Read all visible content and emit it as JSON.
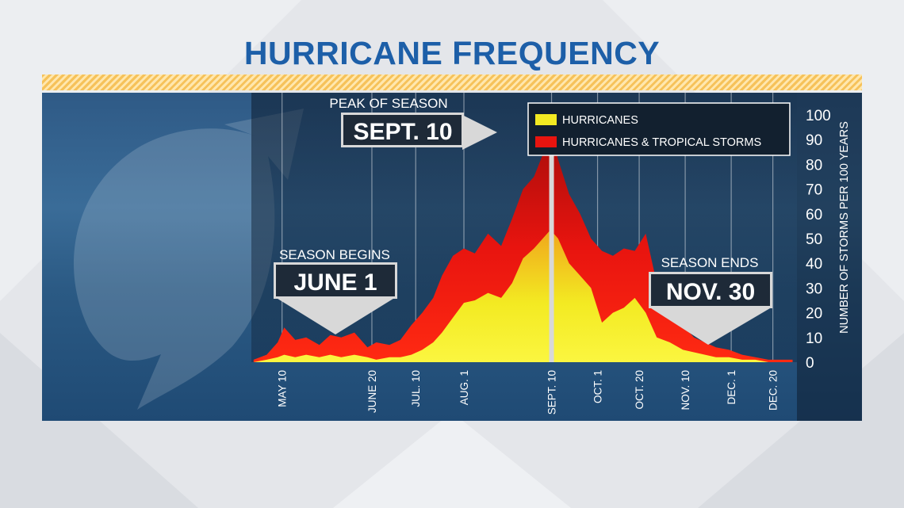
{
  "title": "HURRICANE FREQUENCY",
  "colors": {
    "title": "#1d5fa8",
    "hurricanes": "#f3ea22",
    "hurricanes_tropical": "#e8140f",
    "panel": "#2c5278",
    "stripe": "#f6c25a"
  },
  "annotations": {
    "peak": {
      "label": "PEAK OF SEASON",
      "date": "SEPT. 10"
    },
    "begin": {
      "label": "SEASON BEGINS",
      "date": "JUNE 1"
    },
    "end": {
      "label": "SEASON ENDS",
      "date": "NOV. 30"
    }
  },
  "chart_data": {
    "type": "area",
    "title": "HURRICANE FREQUENCY",
    "ylabel": "NUMBER OF STORMS PER 100 YEARS",
    "xlabel": "",
    "ylim": [
      0,
      100
    ],
    "yticks": [
      0,
      10,
      20,
      30,
      40,
      50,
      60,
      70,
      80,
      90,
      100
    ],
    "xlim": [
      "2023-04-26",
      "2023-12-31"
    ],
    "xtick_dates": [
      "2023-05-10",
      "2023-06-20",
      "2023-07-10",
      "2023-08-01",
      "2023-09-10",
      "2023-10-01",
      "2023-10-20",
      "2023-11-10",
      "2023-12-01",
      "2023-12-20"
    ],
    "xtick_labels": [
      "MAY 10",
      "JUNE 20",
      "JUL. 10",
      "AUG. 1",
      "SEPT. 10",
      "OCT. 1",
      "OCT. 20",
      "NOV. 10",
      "DEC. 1",
      "DEC. 20"
    ],
    "legend_position": "top-right",
    "grid": "vertical",
    "peak_date": "2023-09-10",
    "series": [
      {
        "name": "HURRICANES & TROPICAL STORMS",
        "x": [
          "2023-04-27",
          "2023-05-03",
          "2023-05-08",
          "2023-05-11",
          "2023-05-16",
          "2023-05-21",
          "2023-05-27",
          "2023-06-01",
          "2023-06-06",
          "2023-06-12",
          "2023-06-18",
          "2023-06-22",
          "2023-06-28",
          "2023-07-03",
          "2023-07-08",
          "2023-07-13",
          "2023-07-18",
          "2023-07-22",
          "2023-07-27",
          "2023-08-01",
          "2023-08-06",
          "2023-08-12",
          "2023-08-18",
          "2023-08-23",
          "2023-08-28",
          "2023-09-02",
          "2023-09-06",
          "2023-09-09",
          "2023-09-10",
          "2023-09-13",
          "2023-09-18",
          "2023-09-23",
          "2023-09-28",
          "2023-10-03",
          "2023-10-08",
          "2023-10-13",
          "2023-10-18",
          "2023-10-23",
          "2023-10-28",
          "2023-11-03",
          "2023-11-09",
          "2023-11-14",
          "2023-11-19",
          "2023-11-24",
          "2023-11-30",
          "2023-12-06",
          "2023-12-12",
          "2023-12-18",
          "2023-12-24",
          "2023-12-29"
        ],
        "y": [
          1,
          3,
          8,
          14,
          9,
          10,
          7,
          11,
          10,
          12,
          6,
          8,
          7,
          9,
          15,
          20,
          26,
          35,
          43,
          46,
          44,
          52,
          47,
          58,
          70,
          75,
          84,
          92,
          93,
          82,
          68,
          60,
          50,
          45,
          43,
          46,
          45,
          52,
          32,
          22,
          15,
          10,
          8,
          6,
          5,
          3,
          2,
          1,
          1,
          1
        ]
      },
      {
        "name": "HURRICANES",
        "x": [
          "2023-04-27",
          "2023-05-03",
          "2023-05-08",
          "2023-05-11",
          "2023-05-16",
          "2023-05-21",
          "2023-05-27",
          "2023-06-01",
          "2023-06-06",
          "2023-06-12",
          "2023-06-18",
          "2023-06-22",
          "2023-06-28",
          "2023-07-03",
          "2023-07-08",
          "2023-07-13",
          "2023-07-18",
          "2023-07-22",
          "2023-07-27",
          "2023-08-01",
          "2023-08-06",
          "2023-08-12",
          "2023-08-18",
          "2023-08-23",
          "2023-08-28",
          "2023-09-02",
          "2023-09-06",
          "2023-09-09",
          "2023-09-10",
          "2023-09-13",
          "2023-09-18",
          "2023-09-23",
          "2023-09-28",
          "2023-10-03",
          "2023-10-08",
          "2023-10-13",
          "2023-10-18",
          "2023-10-23",
          "2023-10-28",
          "2023-11-03",
          "2023-11-09",
          "2023-11-14",
          "2023-11-19",
          "2023-11-24",
          "2023-11-30",
          "2023-12-06",
          "2023-12-12",
          "2023-12-18",
          "2023-12-24",
          "2023-12-29"
        ],
        "y": [
          0,
          1,
          2,
          3,
          2,
          3,
          2,
          3,
          2,
          3,
          2,
          1,
          2,
          2,
          3,
          5,
          8,
          12,
          18,
          24,
          25,
          28,
          26,
          32,
          42,
          46,
          50,
          53,
          53,
          50,
          40,
          35,
          30,
          16,
          20,
          22,
          26,
          20,
          10,
          8,
          5,
          4,
          3,
          2,
          2,
          1,
          1,
          0,
          0,
          0
        ]
      }
    ]
  }
}
